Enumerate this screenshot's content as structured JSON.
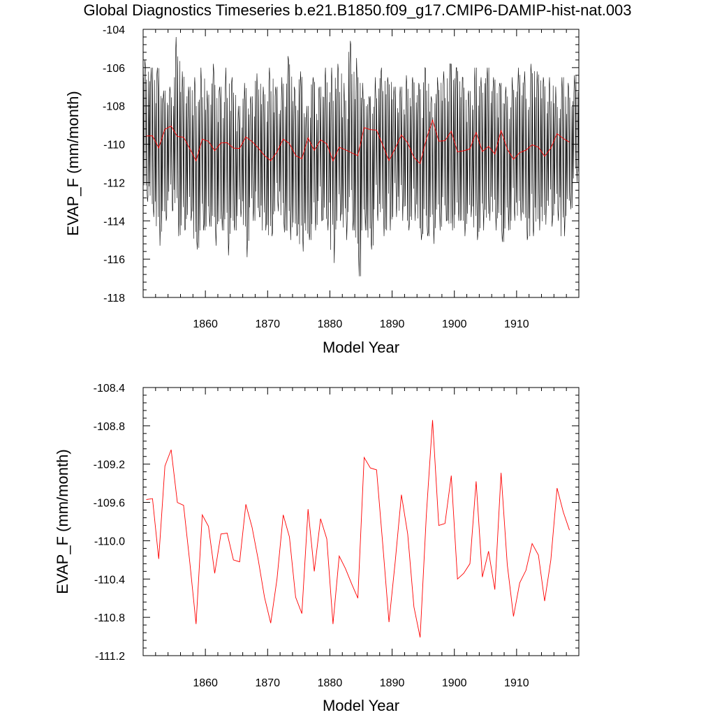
{
  "title": "Global Diagnostics Timeseries b.e21.B1850.f09_g17.CMIP6-DAMIP-hist-nat.003",
  "colors": {
    "monthly": "#000000",
    "annual": "#ff0000"
  },
  "chart_data": [
    {
      "type": "line",
      "xlabel": "Model Year",
      "ylabel": "EVAP_F (mm/month)",
      "xlim": [
        1850,
        1920
      ],
      "ylim": [
        -118,
        -104
      ],
      "xticks": [
        1860,
        1870,
        1880,
        1890,
        1900,
        1910
      ],
      "yticks": [
        -118,
        -116,
        -114,
        -112,
        -110,
        -108,
        -106,
        -104
      ],
      "ytick_labels": [
        "-118",
        "-116",
        "-114",
        "-112",
        "-110",
        "-108",
        "-106",
        "-104"
      ],
      "series": [
        {
          "kind": "monthly",
          "color": "#000000",
          "x_start": 1850.04,
          "x_step": 0.0833333,
          "envelope_high": [
            -105.6,
            -106.0,
            -106.0,
            -107.2,
            -107.0,
            -104.4,
            -106.2,
            -107.0,
            -106.5,
            -106.0,
            -107.2,
            -105.8,
            -107.0,
            -106.0,
            -106.5,
            -108.0,
            -106.8,
            -107.5,
            -106.3,
            -107.0,
            -106.0,
            -107.0,
            -106.5,
            -105.4,
            -107.0,
            -106.2,
            -108.0,
            -106.5,
            -107.0,
            -106.0,
            -106.0,
            -105.8,
            -106.8,
            -104.6,
            -105.5,
            -106.8,
            -107.5,
            -106.5,
            -106.0,
            -106.5,
            -107.0,
            -107.0,
            -106.4,
            -106.5,
            -106.8,
            -106.0,
            -107.5,
            -106.5,
            -106.2,
            -105.8,
            -106.0,
            -106.5,
            -107.2,
            -106.0,
            -106.5,
            -106.0,
            -106.5,
            -106.8,
            -107.0,
            -106.5,
            -106.0,
            -106.2,
            -105.8,
            -106.2,
            -106.5,
            -106.5,
            -107.0,
            -106.5,
            -106.8,
            -106.4
          ],
          "envelope_low": [
            -113.0,
            -113.8,
            -115.3,
            -114.0,
            -113.5,
            -114.8,
            -114.5,
            -114.0,
            -115.5,
            -114.5,
            -114.3,
            -115.3,
            -114.5,
            -115.8,
            -114.5,
            -113.8,
            -115.9,
            -114.0,
            -113.8,
            -114.5,
            -114.8,
            -113.5,
            -114.6,
            -115.0,
            -114.8,
            -115.6,
            -115.0,
            -114.5,
            -114.0,
            -114.5,
            -116.2,
            -114.0,
            -115.0,
            -114.5,
            -116.9,
            -114.5,
            -115.5,
            -114.0,
            -114.8,
            -114.5,
            -113.8,
            -114.0,
            -114.5,
            -114.0,
            -115.0,
            -114.8,
            -115.2,
            -114.5,
            -114.0,
            -114.5,
            -114.0,
            -114.8,
            -113.8,
            -115.0,
            -114.5,
            -114.0,
            -114.5,
            -115.1,
            -114.5,
            -114.0,
            -114.0,
            -115.0,
            -114.8,
            -114.5,
            -114.2,
            -114.3,
            -114.0,
            -114.8,
            -113.4,
            -112.0
          ]
        },
        {
          "kind": "annual",
          "color": "#ff0000",
          "x_start": 1850.5,
          "x_step": 1,
          "values": [
            -109.57,
            -109.56,
            -110.19,
            -109.22,
            -109.05,
            -109.6,
            -109.63,
            -110.23,
            -110.87,
            -109.73,
            -109.85,
            -110.34,
            -109.93,
            -109.92,
            -110.2,
            -110.22,
            -109.62,
            -109.86,
            -110.2,
            -110.59,
            -110.86,
            -110.4,
            -109.73,
            -109.96,
            -110.59,
            -110.76,
            -109.67,
            -110.32,
            -109.77,
            -109.98,
            -110.87,
            -110.16,
            -110.29,
            -110.45,
            -110.6,
            -109.13,
            -109.24,
            -109.26,
            -110.04,
            -110.85,
            -110.22,
            -109.52,
            -109.93,
            -110.69,
            -111.01,
            -109.73,
            -108.74,
            -109.84,
            -109.82,
            -109.32,
            -110.4,
            -110.34,
            -110.24,
            -109.38,
            -110.38,
            -110.11,
            -110.51,
            -109.29,
            -110.25,
            -110.79,
            -110.44,
            -110.31,
            -110.03,
            -110.15,
            -110.63,
            -110.2,
            -109.45,
            -109.7,
            -109.89
          ]
        }
      ]
    },
    {
      "type": "line",
      "xlabel": "Model Year",
      "ylabel": "EVAP_F (mm/month)",
      "xlim": [
        1850,
        1920
      ],
      "ylim": [
        -111.2,
        -108.4
      ],
      "xticks": [
        1860,
        1870,
        1880,
        1890,
        1900,
        1910
      ],
      "yticks": [
        -111.2,
        -110.8,
        -110.4,
        -110.0,
        -109.6,
        -109.2,
        -108.8,
        -108.4
      ],
      "ytick_labels": [
        "-111.2",
        "-110.8",
        "-110.4",
        "-110.0",
        "-109.6",
        "-109.2",
        "-108.8",
        "-108.4"
      ],
      "series": [
        {
          "kind": "annual",
          "color": "#ff0000",
          "x_start": 1850.5,
          "x_step": 1,
          "values": [
            -109.57,
            -109.56,
            -110.19,
            -109.22,
            -109.05,
            -109.6,
            -109.63,
            -110.23,
            -110.87,
            -109.73,
            -109.85,
            -110.34,
            -109.93,
            -109.92,
            -110.2,
            -110.22,
            -109.62,
            -109.86,
            -110.2,
            -110.59,
            -110.86,
            -110.4,
            -109.73,
            -109.96,
            -110.59,
            -110.76,
            -109.67,
            -110.32,
            -109.77,
            -109.98,
            -110.87,
            -110.16,
            -110.29,
            -110.45,
            -110.6,
            -109.13,
            -109.24,
            -109.26,
            -110.04,
            -110.85,
            -110.22,
            -109.52,
            -109.93,
            -110.69,
            -111.01,
            -109.73,
            -108.74,
            -109.84,
            -109.82,
            -109.32,
            -110.4,
            -110.34,
            -110.24,
            -109.38,
            -110.38,
            -110.11,
            -110.51,
            -109.29,
            -110.25,
            -110.79,
            -110.44,
            -110.31,
            -110.03,
            -110.15,
            -110.63,
            -110.2,
            -109.45,
            -109.7,
            -109.89
          ]
        }
      ]
    }
  ]
}
